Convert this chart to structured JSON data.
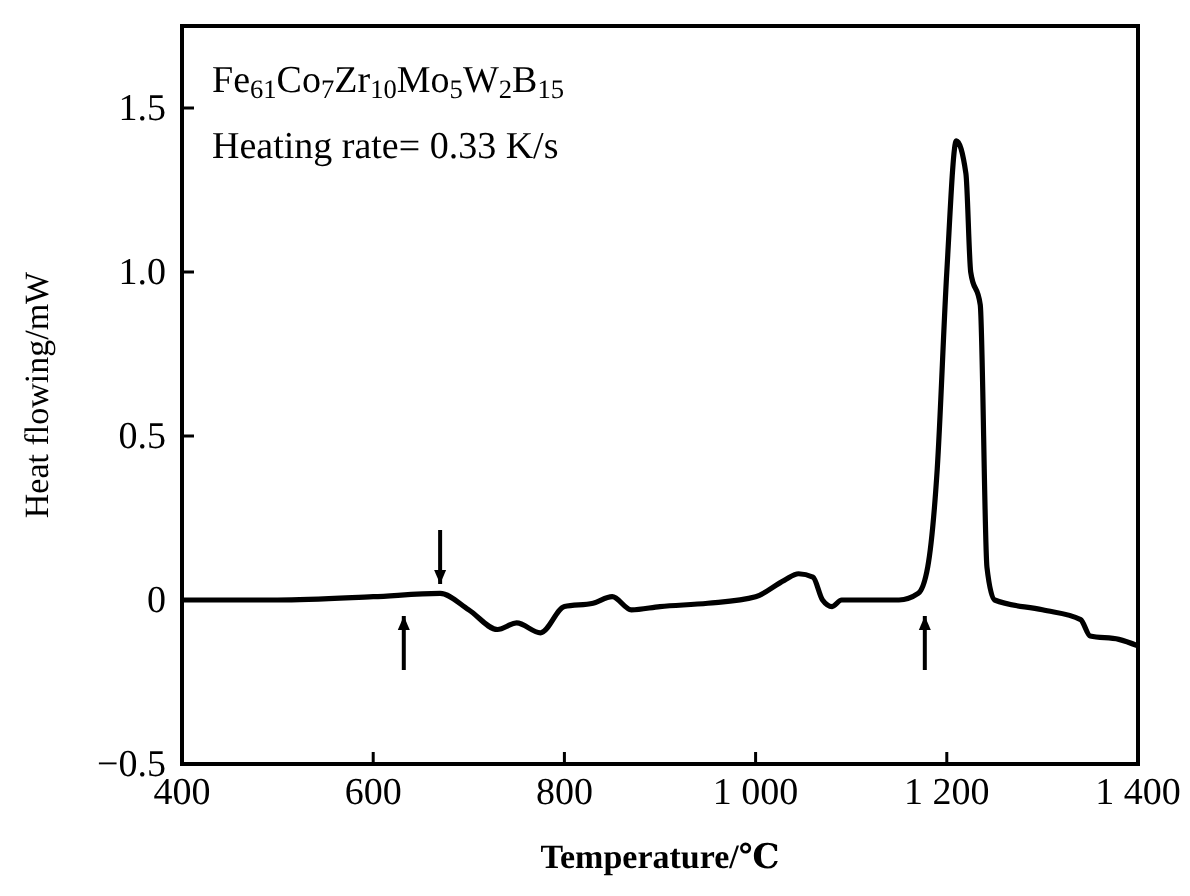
{
  "chart_data": {
    "type": "line",
    "xlabel": "Temperature/℃",
    "ylabel": "Heat flowing/mW",
    "annotations": [
      "Fe$_{61}$Co$_{7}$Zr$_{10}$Mo$_{5}$W$_{2}$B$_{15}$",
      "Heating rate= 0.33 K/s"
    ],
    "x": [
      400,
      500,
      600,
      670,
      700,
      730,
      750,
      775,
      800,
      830,
      850,
      870,
      900,
      950,
      1000,
      1030,
      1045,
      1060,
      1070,
      1080,
      1090,
      1150,
      1170,
      1180,
      1190,
      1200,
      1210,
      1220,
      1225,
      1235,
      1242,
      1250,
      1300,
      1340,
      1350,
      1380,
      1400
    ],
    "series": [
      {
        "color": "#000000",
        "values": [
          0.0,
          0.0,
          0.01,
          0.02,
          -0.03,
          -0.09,
          -0.07,
          -0.1,
          -0.02,
          -0.01,
          0.01,
          -0.03,
          -0.02,
          -0.01,
          0.01,
          0.06,
          0.08,
          0.07,
          0.0,
          -0.02,
          0.0,
          0.0,
          0.02,
          0.1,
          0.4,
          1.0,
          1.4,
          1.3,
          1.0,
          0.9,
          0.1,
          0.0,
          -0.03,
          -0.06,
          -0.11,
          -0.12,
          -0.14
        ]
      }
    ],
    "xlim": [
      400,
      1400
    ],
    "xticks": [
      400,
      600,
      800,
      {
        "value": 1000,
        "label": "1 000"
      },
      {
        "value": 1200,
        "label": "1 200"
      },
      {
        "value": 1400,
        "label": "1 400"
      }
    ],
    "ylim": [
      -0.5,
      1.75
    ],
    "yticks": [
      {
        "value": -0.5,
        "label": "−0.5"
      },
      0,
      0.5,
      {
        "value": 1,
        "label": "1.0"
      },
      1.5
    ],
    "grid": false,
    "marker": "none",
    "line_style": "solid"
  }
}
